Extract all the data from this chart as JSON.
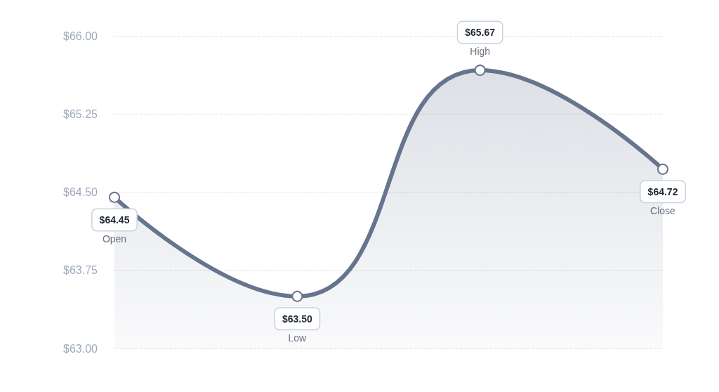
{
  "chart_data": {
    "type": "area",
    "categories": [
      "Open",
      "Low",
      "High",
      "Close"
    ],
    "series": [
      {
        "color": "#67748e",
        "values": [
          64.45,
          63.5,
          65.67,
          64.72
        ],
        "value_labels": [
          "$64.45",
          "$63.50",
          "$65.67",
          "$64.72"
        ]
      }
    ],
    "ylim": [
      63,
      66
    ],
    "yticks": [
      {
        "value": 63,
        "label": "$63.00"
      },
      {
        "value": 63.75,
        "label": "$63.75"
      },
      {
        "value": 64.5,
        "label": "$64.50"
      },
      {
        "value": 65.25,
        "label": "$65.25"
      },
      {
        "value": 66,
        "label": "$66.00"
      }
    ],
    "grid": "y",
    "marker": "circle",
    "line_style": "solid"
  }
}
